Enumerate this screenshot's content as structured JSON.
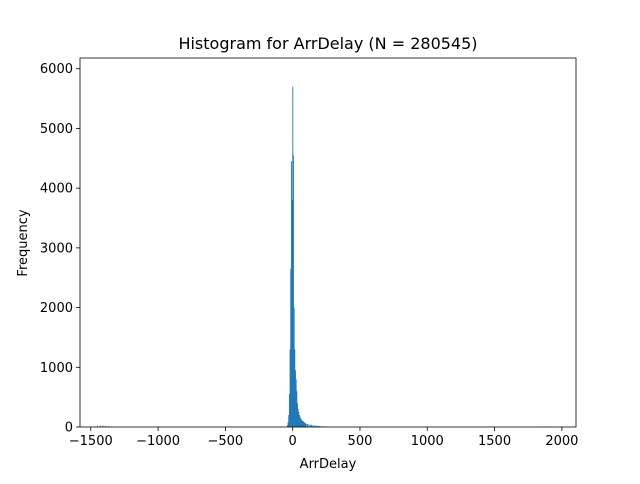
{
  "chart_data": {
    "type": "bar",
    "title": "Histogram for ArrDelay (N = 280545)",
    "xlabel": "ArrDelay",
    "ylabel": "Frequency",
    "xlim": [
      -1580,
      2105
    ],
    "ylim": [
      0,
      6180
    ],
    "x_ticks": [
      -1500,
      -1000,
      -500,
      0,
      500,
      1000,
      1500,
      2000
    ],
    "x_tick_labels": [
      "−1500",
      "−1000",
      "−500",
      "0",
      "500",
      "1000",
      "1500",
      "2000"
    ],
    "y_ticks": [
      0,
      1000,
      2000,
      3000,
      4000,
      5000,
      6000
    ],
    "y_tick_labels": [
      "0",
      "1000",
      "2000",
      "3000",
      "4000",
      "5000",
      "6000"
    ],
    "bar_width": 5,
    "bar_color": "#1f77b4",
    "bins": [
      {
        "x": -1470,
        "y": 10
      },
      {
        "x": -1450,
        "y": 20
      },
      {
        "x": -1430,
        "y": 25
      },
      {
        "x": -1410,
        "y": 25
      },
      {
        "x": -1390,
        "y": 20
      },
      {
        "x": -1370,
        "y": 15
      },
      {
        "x": -1350,
        "y": 10
      },
      {
        "x": -40,
        "y": 30
      },
      {
        "x": -35,
        "y": 80
      },
      {
        "x": -30,
        "y": 200
      },
      {
        "x": -25,
        "y": 550
      },
      {
        "x": -20,
        "y": 1300
      },
      {
        "x": -15,
        "y": 2650
      },
      {
        "x": -10,
        "y": 4450
      },
      {
        "x": -5,
        "y": 3800
      },
      {
        "x": 0,
        "y": 5700
      },
      {
        "x": 5,
        "y": 4550
      },
      {
        "x": 10,
        "y": 2000
      },
      {
        "x": 15,
        "y": 1300
      },
      {
        "x": 20,
        "y": 950
      },
      {
        "x": 25,
        "y": 800
      },
      {
        "x": 30,
        "y": 600
      },
      {
        "x": 35,
        "y": 400
      },
      {
        "x": 40,
        "y": 300
      },
      {
        "x": 45,
        "y": 250
      },
      {
        "x": 50,
        "y": 200
      },
      {
        "x": 55,
        "y": 170
      },
      {
        "x": 60,
        "y": 140
      },
      {
        "x": 65,
        "y": 120
      },
      {
        "x": 70,
        "y": 110
      },
      {
        "x": 75,
        "y": 100
      },
      {
        "x": 80,
        "y": 90
      },
      {
        "x": 85,
        "y": 80
      },
      {
        "x": 90,
        "y": 70
      },
      {
        "x": 95,
        "y": 60
      },
      {
        "x": 100,
        "y": 55
      },
      {
        "x": 110,
        "y": 50
      },
      {
        "x": 120,
        "y": 45
      },
      {
        "x": 130,
        "y": 40
      },
      {
        "x": 140,
        "y": 35
      },
      {
        "x": 150,
        "y": 30
      },
      {
        "x": 160,
        "y": 25
      },
      {
        "x": 170,
        "y": 22
      },
      {
        "x": 180,
        "y": 20
      },
      {
        "x": 190,
        "y": 18
      },
      {
        "x": 200,
        "y": 15
      },
      {
        "x": 210,
        "y": 12
      },
      {
        "x": 220,
        "y": 10
      },
      {
        "x": 230,
        "y": 8
      },
      {
        "x": 240,
        "y": 6
      },
      {
        "x": 250,
        "y": 5
      },
      {
        "x": 1860,
        "y": 5
      },
      {
        "x": 1880,
        "y": 8
      },
      {
        "x": 1900,
        "y": 5
      }
    ]
  }
}
